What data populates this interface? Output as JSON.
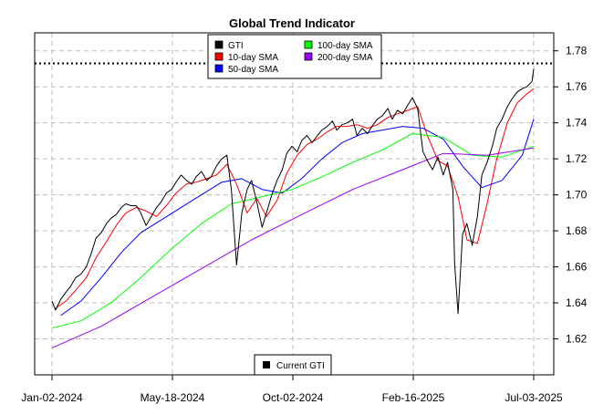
{
  "chart_data": {
    "type": "line",
    "title": "Global Trend Indicator",
    "xlabel": "",
    "ylabel": "",
    "x_start": "2024-01-02",
    "x_end": "2025-07-03",
    "x_tick_labels": [
      "Jan-02-2024",
      "May-18-2024",
      "Oct-02-2024",
      "Feb-16-2025",
      "Jul-03-2025"
    ],
    "x_tick_dates": [
      "2024-01-02",
      "2024-05-18",
      "2024-10-02",
      "2025-02-16",
      "2025-07-03"
    ],
    "ylim": [
      1.6,
      1.79
    ],
    "y_tick_labels": [
      "1.62",
      "1.64",
      "1.66",
      "1.68",
      "1.70",
      "1.72",
      "1.74",
      "1.76",
      "1.78"
    ],
    "y_ticks": [
      1.62,
      1.64,
      1.66,
      1.68,
      1.7,
      1.72,
      1.74,
      1.76,
      1.78
    ],
    "grid": true,
    "legend_position": "top-center",
    "reference_line": {
      "name": "Current GTI",
      "value": 1.773,
      "style": "dotted",
      "color": "#000000"
    },
    "series": [
      {
        "name": "GTI",
        "color": "#000000",
        "points": [
          [
            "2024-01-02",
            1.641
          ],
          [
            "2024-01-06",
            1.636
          ],
          [
            "2024-01-12",
            1.642
          ],
          [
            "2024-01-18",
            1.646
          ],
          [
            "2024-01-23",
            1.649
          ],
          [
            "2024-01-29",
            1.654
          ],
          [
            "2024-02-04",
            1.656
          ],
          [
            "2024-02-10",
            1.66
          ],
          [
            "2024-02-16",
            1.668
          ],
          [
            "2024-02-21",
            1.676
          ],
          [
            "2024-02-27",
            1.679
          ],
          [
            "2024-03-04",
            1.684
          ],
          [
            "2024-03-09",
            1.687
          ],
          [
            "2024-03-15",
            1.689
          ],
          [
            "2024-03-21",
            1.693
          ],
          [
            "2024-03-26",
            1.695
          ],
          [
            "2024-04-01",
            1.694
          ],
          [
            "2024-04-07",
            1.694
          ],
          [
            "2024-04-12",
            1.69
          ],
          [
            "2024-04-18",
            1.683
          ],
          [
            "2024-04-24",
            1.688
          ],
          [
            "2024-04-30",
            1.693
          ],
          [
            "2024-05-05",
            1.696
          ],
          [
            "2024-05-11",
            1.701
          ],
          [
            "2024-05-17",
            1.703
          ],
          [
            "2024-05-22",
            1.707
          ],
          [
            "2024-05-28",
            1.711
          ],
          [
            "2024-06-03",
            1.708
          ],
          [
            "2024-06-09",
            1.706
          ],
          [
            "2024-06-14",
            1.71
          ],
          [
            "2024-06-20",
            1.713
          ],
          [
            "2024-06-26",
            1.708
          ],
          [
            "2024-07-01",
            1.71
          ],
          [
            "2024-07-07",
            1.716
          ],
          [
            "2024-07-13",
            1.72
          ],
          [
            "2024-07-19",
            1.722
          ],
          [
            "2024-07-24",
            1.703
          ],
          [
            "2024-07-30",
            1.661
          ],
          [
            "2024-08-05",
            1.69
          ],
          [
            "2024-08-11",
            1.703
          ],
          [
            "2024-08-16",
            1.708
          ],
          [
            "2024-08-22",
            1.696
          ],
          [
            "2024-08-28",
            1.682
          ],
          [
            "2024-09-02",
            1.69
          ],
          [
            "2024-09-08",
            1.7
          ],
          [
            "2024-09-14",
            1.708
          ],
          [
            "2024-09-20",
            1.714
          ],
          [
            "2024-09-25",
            1.723
          ],
          [
            "2024-10-01",
            1.727
          ],
          [
            "2024-10-07",
            1.724
          ],
          [
            "2024-10-12",
            1.73
          ],
          [
            "2024-10-18",
            1.733
          ],
          [
            "2024-10-24",
            1.729
          ],
          [
            "2024-10-30",
            1.733
          ],
          [
            "2024-11-04",
            1.736
          ],
          [
            "2024-11-10",
            1.738
          ],
          [
            "2024-11-16",
            1.741
          ],
          [
            "2024-11-21",
            1.736
          ],
          [
            "2024-11-27",
            1.739
          ],
          [
            "2024-12-03",
            1.74
          ],
          [
            "2024-12-09",
            1.742
          ],
          [
            "2024-12-14",
            1.733
          ],
          [
            "2024-12-20",
            1.737
          ],
          [
            "2024-12-26",
            1.734
          ],
          [
            "2024-12-31",
            1.738
          ],
          [
            "2025-01-06",
            1.742
          ],
          [
            "2025-01-12",
            1.744
          ],
          [
            "2025-01-18",
            1.748
          ],
          [
            "2025-01-23",
            1.742
          ],
          [
            "2025-01-29",
            1.747
          ],
          [
            "2025-02-04",
            1.745
          ],
          [
            "2025-02-10",
            1.75
          ],
          [
            "2025-02-15",
            1.754
          ],
          [
            "2025-02-21",
            1.748
          ],
          [
            "2025-02-27",
            1.724
          ],
          [
            "2025-03-04",
            1.719
          ],
          [
            "2025-03-10",
            1.714
          ],
          [
            "2025-03-16",
            1.721
          ],
          [
            "2025-03-22",
            1.711
          ],
          [
            "2025-03-27",
            1.718
          ],
          [
            "2025-04-02",
            1.703
          ],
          [
            "2025-04-04",
            1.662
          ],
          [
            "2025-04-08",
            1.634
          ],
          [
            "2025-04-13",
            1.678
          ],
          [
            "2025-04-18",
            1.684
          ],
          [
            "2025-04-24",
            1.672
          ],
          [
            "2025-04-30",
            1.688
          ],
          [
            "2025-05-05",
            1.711
          ],
          [
            "2025-05-11",
            1.718
          ],
          [
            "2025-05-17",
            1.727
          ],
          [
            "2025-05-22",
            1.737
          ],
          [
            "2025-05-28",
            1.742
          ],
          [
            "2025-06-03",
            1.749
          ],
          [
            "2025-06-08",
            1.753
          ],
          [
            "2025-06-14",
            1.757
          ],
          [
            "2025-06-20",
            1.759
          ],
          [
            "2025-06-25",
            1.76
          ],
          [
            "2025-07-01",
            1.763
          ],
          [
            "2025-07-03",
            1.77
          ]
        ]
      },
      {
        "name": "10-day SMA",
        "color": "#ff0000",
        "points": [
          [
            "2024-01-06",
            1.637
          ],
          [
            "2024-01-18",
            1.641
          ],
          [
            "2024-01-29",
            1.647
          ],
          [
            "2024-02-10",
            1.654
          ],
          [
            "2024-02-21",
            1.665
          ],
          [
            "2024-03-04",
            1.674
          ],
          [
            "2024-03-15",
            1.683
          ],
          [
            "2024-03-26",
            1.69
          ],
          [
            "2024-04-07",
            1.693
          ],
          [
            "2024-04-18",
            1.691
          ],
          [
            "2024-04-30",
            1.688
          ],
          [
            "2024-05-11",
            1.694
          ],
          [
            "2024-05-22",
            1.701
          ],
          [
            "2024-06-03",
            1.706
          ],
          [
            "2024-06-14",
            1.707
          ],
          [
            "2024-06-26",
            1.709
          ],
          [
            "2024-07-07",
            1.711
          ],
          [
            "2024-07-19",
            1.717
          ],
          [
            "2024-07-30",
            1.706
          ],
          [
            "2024-08-11",
            1.69
          ],
          [
            "2024-08-22",
            1.698
          ],
          [
            "2024-09-02",
            1.688
          ],
          [
            "2024-09-14",
            1.697
          ],
          [
            "2024-09-25",
            1.712
          ],
          [
            "2024-10-07",
            1.722
          ],
          [
            "2024-10-18",
            1.728
          ],
          [
            "2024-10-30",
            1.731
          ],
          [
            "2024-11-10",
            1.735
          ],
          [
            "2024-11-21",
            1.738
          ],
          [
            "2024-12-03",
            1.738
          ],
          [
            "2024-12-14",
            1.739
          ],
          [
            "2024-12-26",
            1.737
          ],
          [
            "2025-01-06",
            1.739
          ],
          [
            "2025-01-18",
            1.743
          ],
          [
            "2025-01-29",
            1.745
          ],
          [
            "2025-02-10",
            1.747
          ],
          [
            "2025-02-21",
            1.749
          ],
          [
            "2025-03-04",
            1.733
          ],
          [
            "2025-03-16",
            1.719
          ],
          [
            "2025-03-27",
            1.716
          ],
          [
            "2025-04-08",
            1.699
          ],
          [
            "2025-04-18",
            1.675
          ],
          [
            "2025-04-30",
            1.673
          ],
          [
            "2025-05-11",
            1.695
          ],
          [
            "2025-05-22",
            1.72
          ],
          [
            "2025-06-03",
            1.74
          ],
          [
            "2025-06-14",
            1.751
          ],
          [
            "2025-06-25",
            1.756
          ],
          [
            "2025-07-03",
            1.759
          ]
        ]
      },
      {
        "name": "50-day SMA",
        "color": "#0000ff",
        "points": [
          [
            "2024-01-12",
            1.633
          ],
          [
            "2024-02-04",
            1.641
          ],
          [
            "2024-02-27",
            1.654
          ],
          [
            "2024-03-21",
            1.668
          ],
          [
            "2024-04-12",
            1.679
          ],
          [
            "2024-05-05",
            1.686
          ],
          [
            "2024-05-28",
            1.693
          ],
          [
            "2024-06-20",
            1.7
          ],
          [
            "2024-07-13",
            1.707
          ],
          [
            "2024-08-05",
            1.709
          ],
          [
            "2024-08-28",
            1.703
          ],
          [
            "2024-09-20",
            1.701
          ],
          [
            "2024-10-12",
            1.709
          ],
          [
            "2024-11-04",
            1.72
          ],
          [
            "2024-11-27",
            1.729
          ],
          [
            "2024-12-20",
            1.734
          ],
          [
            "2025-01-12",
            1.736
          ],
          [
            "2025-02-04",
            1.738
          ],
          [
            "2025-02-27",
            1.737
          ],
          [
            "2025-03-22",
            1.731
          ],
          [
            "2025-04-13",
            1.716
          ],
          [
            "2025-05-05",
            1.704
          ],
          [
            "2025-05-28",
            1.708
          ],
          [
            "2025-06-20",
            1.722
          ],
          [
            "2025-07-03",
            1.742
          ]
        ]
      },
      {
        "name": "100-day SMA",
        "color": "#00ff00",
        "points": [
          [
            "2024-01-02",
            1.626
          ],
          [
            "2024-02-04",
            1.63
          ],
          [
            "2024-03-09",
            1.64
          ],
          [
            "2024-04-12",
            1.654
          ],
          [
            "2024-05-17",
            1.67
          ],
          [
            "2024-06-20",
            1.684
          ],
          [
            "2024-07-24",
            1.695
          ],
          [
            "2024-08-28",
            1.699
          ],
          [
            "2024-10-01",
            1.703
          ],
          [
            "2024-11-04",
            1.71
          ],
          [
            "2024-12-09",
            1.718
          ],
          [
            "2025-01-12",
            1.725
          ],
          [
            "2025-02-15",
            1.734
          ],
          [
            "2025-03-22",
            1.732
          ],
          [
            "2025-04-24",
            1.722
          ],
          [
            "2025-05-28",
            1.721
          ],
          [
            "2025-07-03",
            1.727
          ]
        ]
      },
      {
        "name": "200-day SMA",
        "color": "#9900ff",
        "points": [
          [
            "2024-01-02",
            1.615
          ],
          [
            "2024-02-27",
            1.627
          ],
          [
            "2024-04-24",
            1.643
          ],
          [
            "2024-06-20",
            1.659
          ],
          [
            "2024-08-16",
            1.675
          ],
          [
            "2024-10-12",
            1.689
          ],
          [
            "2024-12-09",
            1.703
          ],
          [
            "2025-02-04",
            1.714
          ],
          [
            "2025-03-22",
            1.723
          ],
          [
            "2025-05-11",
            1.722
          ],
          [
            "2025-07-03",
            1.726
          ]
        ]
      }
    ]
  }
}
